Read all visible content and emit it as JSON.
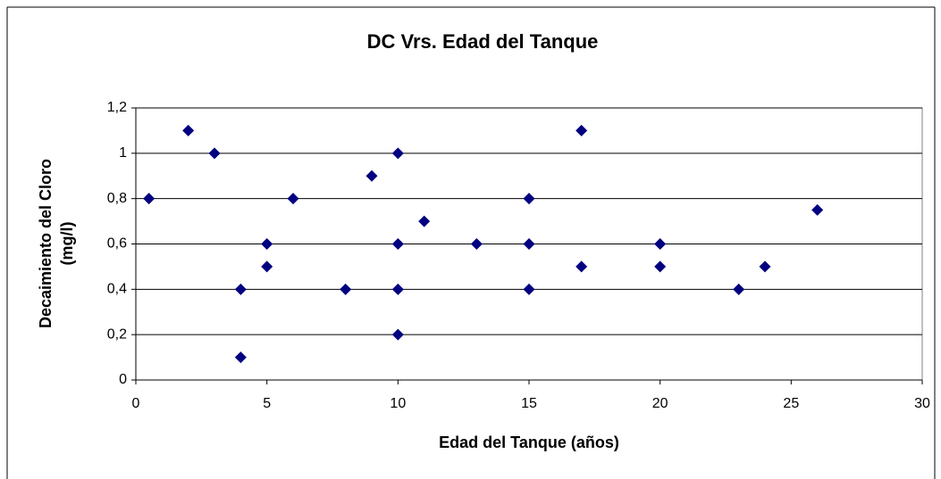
{
  "chart_data": {
    "type": "scatter",
    "title": "DC Vrs. Edad del Tanque",
    "xlabel": "Edad del Tanque (años)",
    "ylabel": [
      "Decaimiento del Cloro",
      "(mg/l)"
    ],
    "color": "#000080",
    "x": [
      0.5,
      2,
      3,
      4,
      4,
      5,
      5,
      6,
      8,
      9,
      10,
      10,
      10,
      10,
      11,
      13,
      15,
      15,
      15,
      17,
      17,
      20,
      20,
      23,
      24,
      26
    ],
    "values": [
      0.8,
      1.1,
      1.0,
      0.4,
      0.1,
      0.6,
      0.5,
      0.8,
      0.4,
      0.9,
      1.0,
      0.6,
      0.4,
      0.2,
      0.7,
      0.6,
      0.8,
      0.6,
      0.4,
      1.1,
      0.5,
      0.6,
      0.5,
      0.4,
      0.5,
      0.75
    ],
    "xlim": [
      0,
      30
    ],
    "xticks": [
      0,
      5,
      10,
      15,
      20,
      25,
      30
    ],
    "ylim": [
      0,
      1.2
    ],
    "yticks": [
      0,
      {
        "value": 0.2,
        "label": "0,2"
      },
      {
        "value": 0.4,
        "label": "0,4"
      },
      {
        "value": 0.6,
        "label": "0,6"
      },
      {
        "value": 0.8,
        "label": "0,8"
      },
      1,
      {
        "value": 1.2,
        "label": "1,2"
      }
    ],
    "grid": true
  }
}
